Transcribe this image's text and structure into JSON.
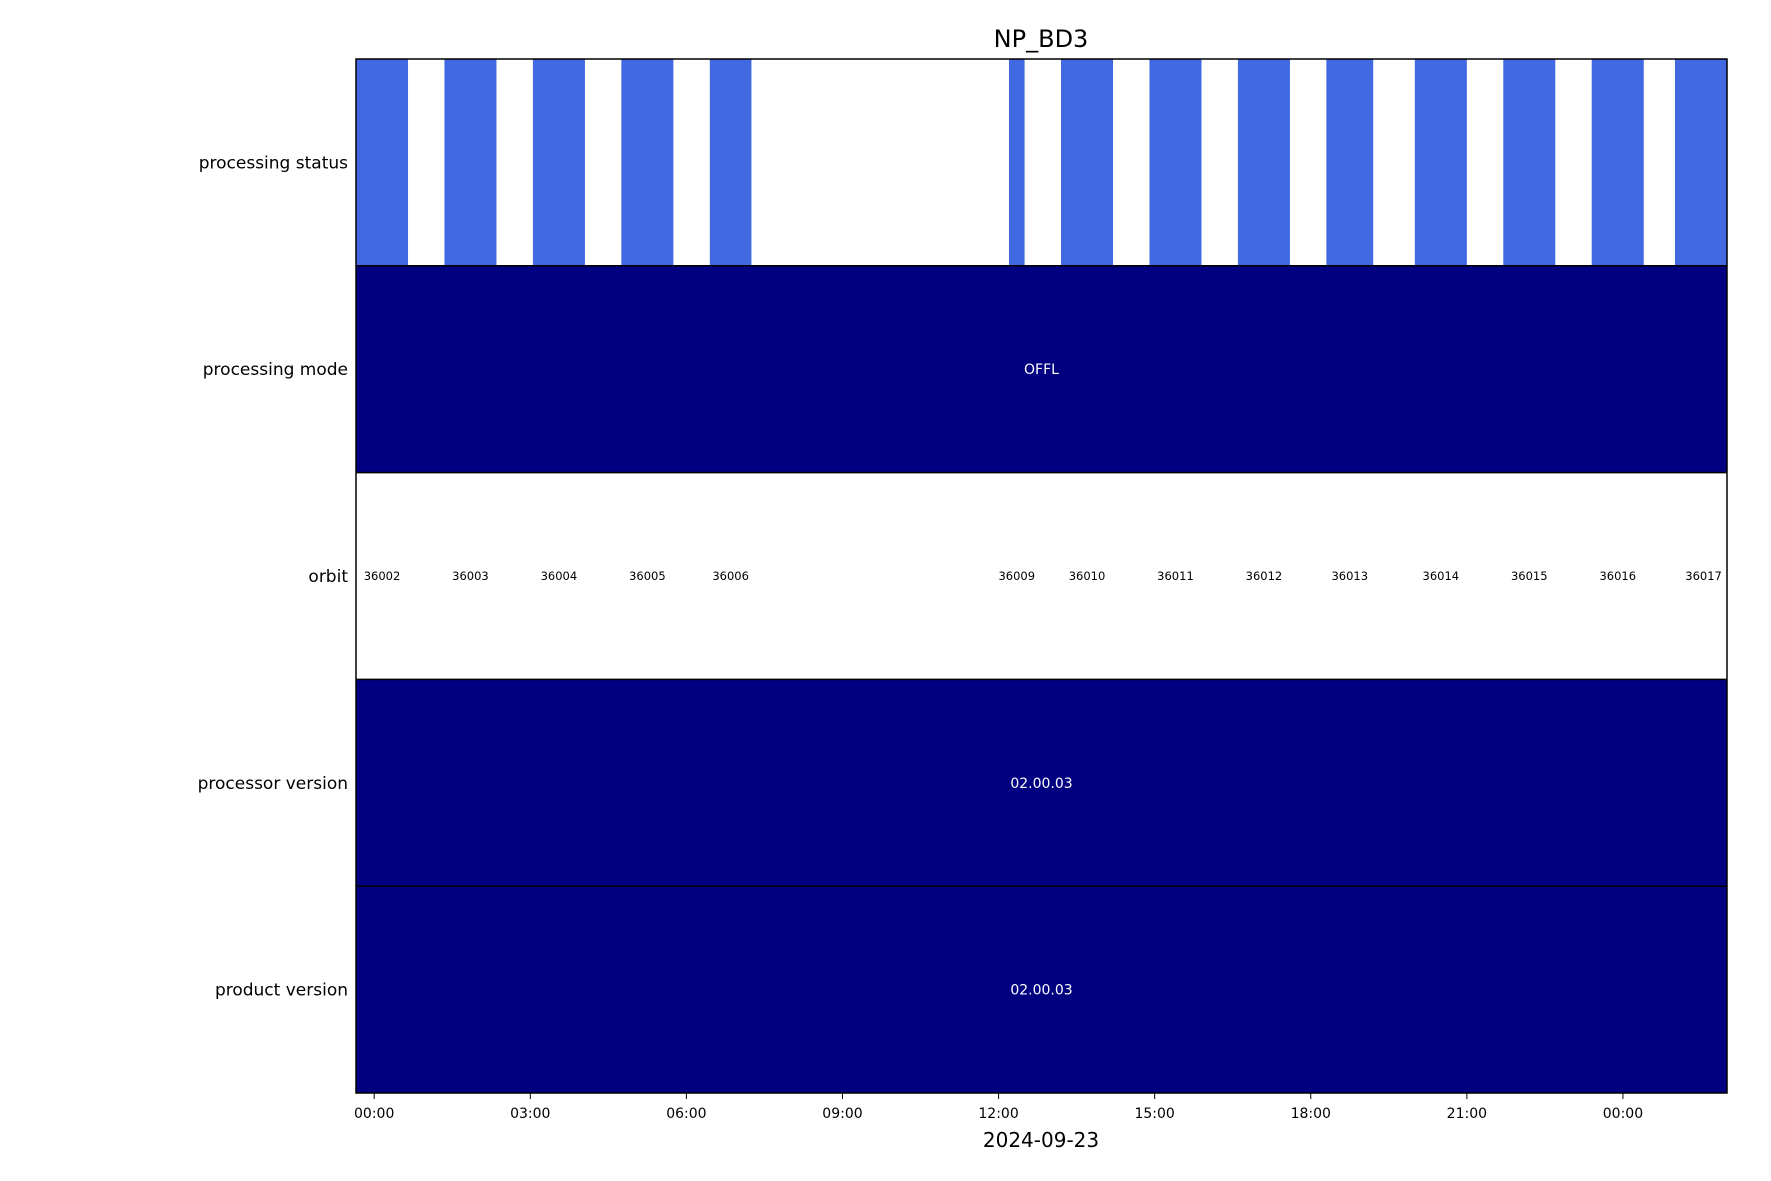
{
  "chart_data": {
    "type": "timeline",
    "title": "NP_BD3",
    "xlabel": "2024-09-23",
    "x_ticks": [
      "00:00",
      "03:00",
      "06:00",
      "09:00",
      "12:00",
      "15:00",
      "18:00",
      "21:00",
      "00:00"
    ],
    "x_range_hours": [
      -0.35,
      26.0
    ],
    "colors": {
      "status": "#4169e1",
      "band": "#000080",
      "frame": "#000000"
    },
    "rows": [
      {
        "label": "processing status",
        "kind": "intervals",
        "intervals": [
          [
            -0.35,
            0.65
          ],
          [
            1.35,
            2.35
          ],
          [
            3.05,
            4.05
          ],
          [
            4.75,
            5.75
          ],
          [
            6.45,
            7.25
          ],
          [
            12.2,
            12.5
          ],
          [
            13.2,
            14.2
          ],
          [
            14.9,
            15.9
          ],
          [
            16.6,
            17.6
          ],
          [
            18.3,
            19.2
          ],
          [
            20.0,
            21.0
          ],
          [
            21.7,
            22.7
          ],
          [
            23.4,
            24.4
          ],
          [
            25.0,
            26.0
          ]
        ]
      },
      {
        "label": "processing mode",
        "kind": "band",
        "text": "OFFL"
      },
      {
        "label": "orbit",
        "kind": "labels",
        "items": [
          {
            "text": "36002",
            "x": 0.15
          },
          {
            "text": "36003",
            "x": 1.85
          },
          {
            "text": "36004",
            "x": 3.55
          },
          {
            "text": "36005",
            "x": 5.25
          },
          {
            "text": "36006",
            "x": 6.85
          },
          {
            "text": "36009",
            "x": 12.35
          },
          {
            "text": "36010",
            "x": 13.7
          },
          {
            "text": "36011",
            "x": 15.4
          },
          {
            "text": "36012",
            "x": 17.1
          },
          {
            "text": "36013",
            "x": 18.75
          },
          {
            "text": "36014",
            "x": 20.5
          },
          {
            "text": "36015",
            "x": 22.2
          },
          {
            "text": "36016",
            "x": 23.9
          },
          {
            "text": "36017",
            "x": 25.55
          }
        ]
      },
      {
        "label": "processor version",
        "kind": "band",
        "text": "02.00.03"
      },
      {
        "label": "product version",
        "kind": "band",
        "text": "02.00.03"
      }
    ]
  }
}
